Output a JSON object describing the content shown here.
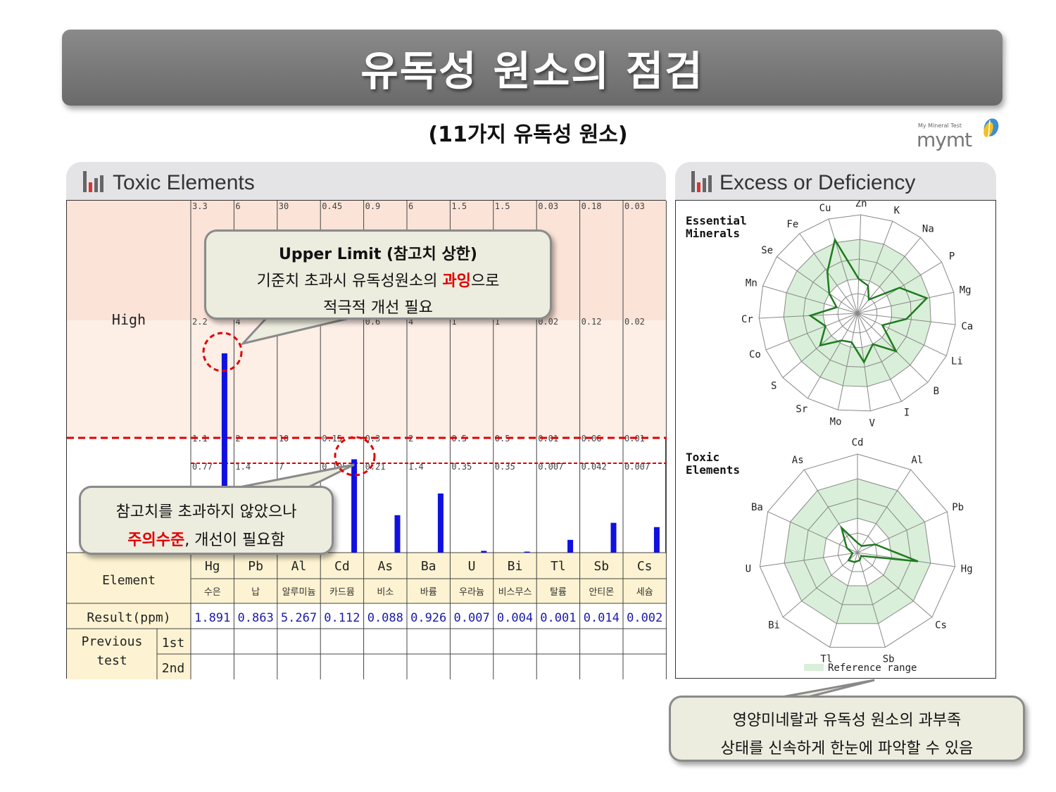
{
  "title": "유독성 원소의 점검",
  "subtitle": "(11가지 유독성 원소)",
  "logo": {
    "small": "My Mineral Test",
    "word": "mymt"
  },
  "panel_left_title": "Toxic Elements",
  "panel_right_title": "Excess or Deficiency",
  "colors": {
    "bar": "#1010e0",
    "high_zone": "#fbe3d8",
    "limit_line": "#e00000",
    "radar_fill": "#d9efd9",
    "radar_line": "#1f7a1f",
    "callout_bg": "#ececdf"
  },
  "chart_data": {
    "type": "bar",
    "categories": [
      "Hg",
      "Pb",
      "Al",
      "Cd",
      "As",
      "Ba",
      "U",
      "Bi",
      "Tl",
      "Sb",
      "Cs"
    ],
    "korean_names": [
      "수은",
      "납",
      "알루미늄",
      "카드뮴",
      "비소",
      "바륨",
      "우라늄",
      "비스무스",
      "탈륨",
      "안티몬",
      "세슘"
    ],
    "values": [
      1.891,
      0.863,
      5.267,
      0.112,
      0.088,
      0.926,
      0.007,
      0.004,
      0.001,
      0.014,
      0.002
    ],
    "value_labels": [
      "1.891",
      "0.863",
      "5.267",
      "0.112",
      "0.088",
      "0.926",
      "0.007",
      "0.004",
      "0.001",
      "0.014",
      "0.002"
    ],
    "row_labels": {
      "high": "High",
      "element": "Element",
      "result": "Result(ppm)",
      "previous": "Previous\ntest",
      "first": "1st",
      "second": "2nd"
    },
    "ticks_top": [
      "3.3",
      "6",
      "30",
      "0.45",
      "0.9",
      "6",
      "1.5",
      "1.5",
      "0.03",
      "0.18",
      "0.03"
    ],
    "ticks_high": [
      "2.2",
      "4",
      "",
      "",
      "0.6",
      "4",
      "1",
      "1",
      "0.02",
      "0.12",
      "0.02"
    ],
    "ticks_upper_limit": [
      "1.1",
      "2",
      "10",
      "0.15",
      "0.3",
      "2",
      "0.5",
      "0.5",
      "0.01",
      "0.06",
      "0.01"
    ],
    "ticks_caution": [
      "0.77",
      "1.4",
      "7",
      "0.105",
      "0.21",
      "1.4",
      "0.35",
      "0.35",
      "0.007",
      "0.042",
      "0.007"
    ],
    "upper_limit": [
      1.1,
      2,
      10,
      0.15,
      0.3,
      2,
      0.5,
      0.5,
      0.01,
      0.06,
      0.01
    ],
    "axis_max": [
      3.3,
      6,
      30,
      0.45,
      0.9,
      6,
      1.5,
      1.5,
      0.03,
      0.18,
      0.03
    ]
  },
  "radar": {
    "essential_label": "Essential\nMinerals",
    "essential_axes": [
      "Zn",
      "K",
      "Na",
      "P",
      "Mg",
      "Ca",
      "Li",
      "B",
      "I",
      "V",
      "Mo",
      "Sr",
      "S",
      "Co",
      "Cr",
      "Mn",
      "Se",
      "Fe",
      "Cu"
    ],
    "essential_values": [
      0.35,
      0.3,
      0.18,
      0.5,
      0.72,
      0.5,
      0.28,
      0.55,
      0.35,
      0.5,
      0.3,
      0.32,
      0.5,
      0.35,
      0.48,
      0.22,
      0.35,
      0.52,
      0.78
    ],
    "toxic_label": "Toxic\nElements",
    "toxic_axes": [
      "Cd",
      "Al",
      "Pb",
      "Hg",
      "Cs",
      "Sb",
      "Tl",
      "Bi",
      "U",
      "Ba",
      "As"
    ],
    "toxic_values": [
      0.1,
      0.08,
      0.2,
      0.62,
      0.05,
      0.08,
      0.1,
      0.12,
      0.05,
      0.12,
      0.3
    ],
    "legend": "Reference range"
  },
  "callouts": {
    "upper_title": "Upper Limit (참고치 상한)",
    "upper_line2_pre": "기준치 초과시 유독성원소의 ",
    "upper_line2_red": "과잉",
    "upper_line2_post": "으로",
    "upper_line3": "적극적 개선 필요",
    "caution_line1": "참고치를 초과하지 않았으나",
    "caution_line2_red": "주의수준",
    "caution_line2_post": ", 개선이 필요함",
    "bottom_line1": "영양미네랄과 유독성 원소의 과부족",
    "bottom_line2": "상태를 신속하게 한눈에 파악할 수 있음"
  }
}
